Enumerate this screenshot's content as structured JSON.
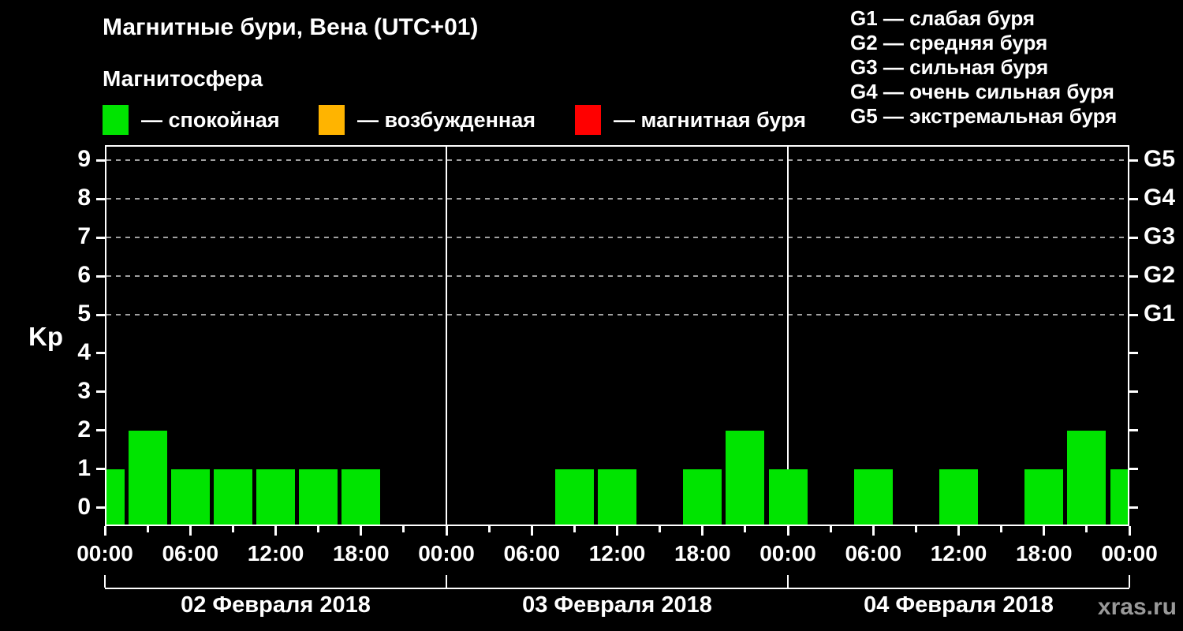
{
  "header": {
    "title": "Магнитные бури, Вена (UTC+01)",
    "subtitle": "Магнитосфера",
    "legend": [
      {
        "name": "calm",
        "label": "— спокойная",
        "color": "#00e400"
      },
      {
        "name": "excited",
        "label": "— возбужденная",
        "color": "#ffb400"
      },
      {
        "name": "storm",
        "label": "— магнитная буря",
        "color": "#ff0000"
      }
    ],
    "g_legend": [
      "G1 — слабая буря",
      "G2 — средняя буря",
      "G3 — сильная буря",
      "G4 — очень сильная буря",
      "G5 — экстремальная буря"
    ]
  },
  "watermark": "xras.ru",
  "chart_data": {
    "type": "bar",
    "title": "Магнитные бури, Вена (UTC+01)",
    "ylabel": "Kp",
    "ylim": [
      -0.45,
      9.4
    ],
    "yticks": [
      0,
      1,
      2,
      3,
      4,
      5,
      6,
      7,
      8,
      9
    ],
    "gridlines_at": [
      5,
      6,
      7,
      8,
      9
    ],
    "right_axis": [
      {
        "kp": 5,
        "label": "G1"
      },
      {
        "kp": 6,
        "label": "G2"
      },
      {
        "kp": 7,
        "label": "G3"
      },
      {
        "kp": 8,
        "label": "G4"
      },
      {
        "kp": 9,
        "label": "G5"
      }
    ],
    "x_step_hours": 3,
    "x_tick_labels_cycle": [
      "00:00",
      "06:00",
      "12:00",
      "18:00"
    ],
    "days": [
      {
        "date": "02 Февраля 2018",
        "values": [
          1,
          2,
          1,
          1,
          1,
          1,
          1,
          0
        ]
      },
      {
        "date": "03 Февраля 2018",
        "values": [
          0,
          0,
          0,
          1,
          1,
          0,
          1,
          2
        ]
      },
      {
        "date": "04 Февраля 2018",
        "values": [
          1,
          0,
          1,
          0,
          1,
          0,
          1,
          2
        ]
      }
    ],
    "trailing_value": 1,
    "bar_color": "#00e400",
    "grid_color": "#a0a0a0",
    "axis_color": "#ffffff",
    "legend_position": "top"
  }
}
